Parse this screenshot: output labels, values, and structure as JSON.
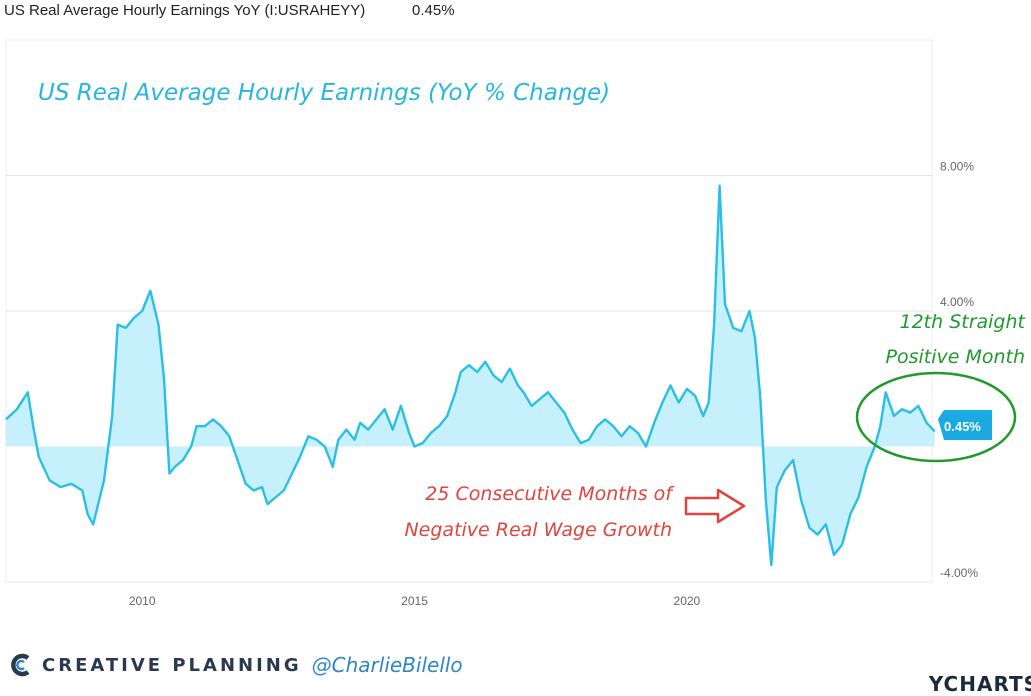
{
  "legend": {
    "series_label": "US Real Average Hourly Earnings YoY (I:USRAHEYY)",
    "latest_value": "0.45%"
  },
  "colors": {
    "line": "#2bbfe6",
    "fill": "#c6f0fb",
    "title": "#27b6e0",
    "negative_note": "#e0443c",
    "positive_note": "#1f9a2c",
    "grid": "#e6e6e6"
  },
  "annotations": {
    "negative_line1": "25 Consecutive Months of",
    "negative_line2": "Negative Real Wage Growth",
    "positive_line1": "12th Straight",
    "positive_line2": "Positive Month",
    "last_value_tag": "0.45%"
  },
  "footer": {
    "brand": "CREATIVE PLANNING",
    "handle": "@CharlieBilello",
    "source": "YCHARTS"
  },
  "chart_data": {
    "type": "area",
    "title": "US Real Average Hourly Earnings (YoY % Change)",
    "xlabel": "",
    "ylabel": "",
    "y_unit": "%",
    "x_ticks": [
      2010,
      2015,
      2020
    ],
    "y_ticks": [
      {
        "value": 8,
        "label": "8.00%"
      },
      {
        "value": 4,
        "label": "4.00%"
      },
      {
        "value": -4,
        "label": "-4.00%"
      }
    ],
    "xlim": [
      2007.5,
      2024.5
    ],
    "ylim": [
      -4,
      12
    ],
    "grid": "horizontal",
    "series": [
      {
        "values": [
          [
            2007.5,
            0.8
          ],
          [
            2007.7,
            1.1
          ],
          [
            2007.9,
            1.6
          ],
          [
            2008.0,
            0.6
          ],
          [
            2008.1,
            -0.3
          ],
          [
            2008.3,
            -1.0
          ],
          [
            2008.5,
            -1.2
          ],
          [
            2008.7,
            -1.1
          ],
          [
            2008.9,
            -1.3
          ],
          [
            2009.0,
            -2.0
          ],
          [
            2009.1,
            -2.3
          ],
          [
            2009.3,
            -1.0
          ],
          [
            2009.45,
            0.9
          ],
          [
            2009.55,
            3.6
          ],
          [
            2009.7,
            3.5
          ],
          [
            2009.85,
            3.8
          ],
          [
            2010.0,
            4.0
          ],
          [
            2010.15,
            4.6
          ],
          [
            2010.3,
            3.6
          ],
          [
            2010.4,
            2.0
          ],
          [
            2010.5,
            -0.8
          ],
          [
            2010.6,
            -0.6
          ],
          [
            2010.75,
            -0.4
          ],
          [
            2010.9,
            0.0
          ],
          [
            2011.0,
            0.6
          ],
          [
            2011.15,
            0.6
          ],
          [
            2011.3,
            0.8
          ],
          [
            2011.45,
            0.6
          ],
          [
            2011.6,
            0.3
          ],
          [
            2011.75,
            -0.4
          ],
          [
            2011.9,
            -1.1
          ],
          [
            2012.05,
            -1.3
          ],
          [
            2012.2,
            -1.2
          ],
          [
            2012.3,
            -1.7
          ],
          [
            2012.45,
            -1.5
          ],
          [
            2012.6,
            -1.3
          ],
          [
            2012.75,
            -0.8
          ],
          [
            2012.9,
            -0.3
          ],
          [
            2013.05,
            0.3
          ],
          [
            2013.2,
            0.2
          ],
          [
            2013.35,
            0.0
          ],
          [
            2013.5,
            -0.6
          ],
          [
            2013.6,
            0.2
          ],
          [
            2013.75,
            0.5
          ],
          [
            2013.9,
            0.2
          ],
          [
            2014.0,
            0.7
          ],
          [
            2014.15,
            0.5
          ],
          [
            2014.3,
            0.8
          ],
          [
            2014.45,
            1.1
          ],
          [
            2014.6,
            0.5
          ],
          [
            2014.75,
            1.2
          ],
          [
            2014.9,
            0.4
          ],
          [
            2015.0,
            0.0
          ],
          [
            2015.15,
            0.1
          ],
          [
            2015.3,
            0.4
          ],
          [
            2015.45,
            0.6
          ],
          [
            2015.6,
            0.9
          ],
          [
            2015.75,
            1.6
          ],
          [
            2015.85,
            2.2
          ],
          [
            2016.0,
            2.4
          ],
          [
            2016.15,
            2.2
          ],
          [
            2016.3,
            2.5
          ],
          [
            2016.45,
            2.1
          ],
          [
            2016.6,
            1.9
          ],
          [
            2016.75,
            2.3
          ],
          [
            2016.9,
            1.8
          ],
          [
            2017.0,
            1.6
          ],
          [
            2017.15,
            1.2
          ],
          [
            2017.3,
            1.4
          ],
          [
            2017.45,
            1.6
          ],
          [
            2017.6,
            1.3
          ],
          [
            2017.75,
            1.0
          ],
          [
            2017.9,
            0.5
          ],
          [
            2018.05,
            0.1
          ],
          [
            2018.2,
            0.2
          ],
          [
            2018.35,
            0.6
          ],
          [
            2018.5,
            0.8
          ],
          [
            2018.65,
            0.6
          ],
          [
            2018.8,
            0.3
          ],
          [
            2018.95,
            0.6
          ],
          [
            2019.1,
            0.4
          ],
          [
            2019.25,
            0.0
          ],
          [
            2019.4,
            0.7
          ],
          [
            2019.55,
            1.3
          ],
          [
            2019.7,
            1.8
          ],
          [
            2019.85,
            1.3
          ],
          [
            2020.0,
            1.7
          ],
          [
            2020.15,
            1.5
          ],
          [
            2020.3,
            0.9
          ],
          [
            2020.4,
            1.3
          ],
          [
            2020.5,
            3.6
          ],
          [
            2020.6,
            7.7
          ],
          [
            2020.7,
            4.2
          ],
          [
            2020.85,
            3.5
          ],
          [
            2021.0,
            3.4
          ],
          [
            2021.15,
            4.0
          ],
          [
            2021.25,
            3.2
          ],
          [
            2021.35,
            1.4
          ],
          [
            2021.45,
            -1.6
          ],
          [
            2021.55,
            -3.5
          ],
          [
            2021.65,
            -1.2
          ],
          [
            2021.8,
            -0.7
          ],
          [
            2021.95,
            -0.4
          ],
          [
            2022.1,
            -1.6
          ],
          [
            2022.25,
            -2.4
          ],
          [
            2022.4,
            -2.6
          ],
          [
            2022.55,
            -2.3
          ],
          [
            2022.7,
            -3.2
          ],
          [
            2022.85,
            -2.9
          ],
          [
            2023.0,
            -2.0
          ],
          [
            2023.15,
            -1.5
          ],
          [
            2023.3,
            -0.6
          ],
          [
            2023.45,
            0.0
          ],
          [
            2023.55,
            0.6
          ],
          [
            2023.65,
            1.6
          ],
          [
            2023.8,
            0.9
          ],
          [
            2023.95,
            1.1
          ],
          [
            2024.1,
            1.0
          ],
          [
            2024.25,
            1.2
          ],
          [
            2024.4,
            0.7
          ],
          [
            2024.55,
            0.45
          ]
        ]
      }
    ]
  }
}
